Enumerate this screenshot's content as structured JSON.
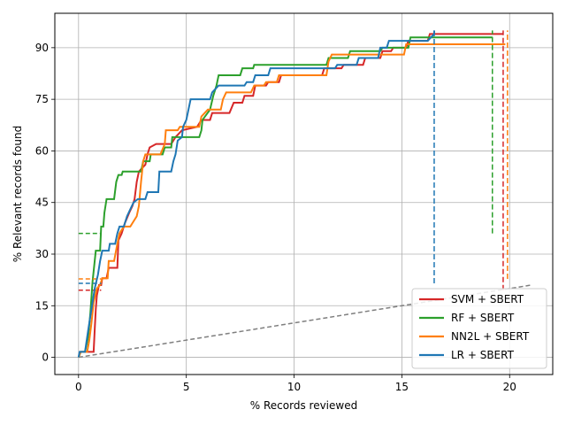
{
  "chart_data": {
    "type": "line",
    "title": "",
    "xlabel": "% Records reviewed",
    "ylabel": "% Relevant records found",
    "xlim": [
      -1.1,
      22.0
    ],
    "ylim": [
      -5,
      100
    ],
    "xticks": [
      0,
      5,
      10,
      15,
      20
    ],
    "yticks": [
      0,
      15,
      30,
      45,
      60,
      75,
      90
    ],
    "grid": true,
    "legend_position": "bottom-right",
    "series": [
      {
        "name": "SVM + SBERT",
        "color": "#d62728",
        "points": [
          [
            0,
            0
          ],
          [
            0.1,
            1.6
          ],
          [
            0.7,
            1.6
          ],
          [
            0.75,
            8
          ],
          [
            0.8,
            14
          ],
          [
            0.85,
            18
          ],
          [
            0.95,
            21
          ],
          [
            1.05,
            21
          ],
          [
            1.1,
            23
          ],
          [
            1.3,
            23
          ],
          [
            1.4,
            26
          ],
          [
            1.8,
            26
          ],
          [
            1.85,
            34
          ],
          [
            2.0,
            36
          ],
          [
            2.15,
            39
          ],
          [
            2.35,
            42
          ],
          [
            2.5,
            44
          ],
          [
            2.6,
            46
          ],
          [
            2.7,
            51
          ],
          [
            2.8,
            54
          ],
          [
            3.1,
            56
          ],
          [
            3.2,
            59
          ],
          [
            3.3,
            61
          ],
          [
            3.6,
            62
          ],
          [
            4.3,
            62
          ],
          [
            4.5,
            64
          ],
          [
            4.8,
            66
          ],
          [
            5.5,
            67
          ],
          [
            5.7,
            69
          ],
          [
            6.1,
            69
          ],
          [
            6.2,
            71
          ],
          [
            7.0,
            71
          ],
          [
            7.2,
            74
          ],
          [
            7.6,
            74
          ],
          [
            7.7,
            76
          ],
          [
            8.1,
            76
          ],
          [
            8.2,
            79
          ],
          [
            8.7,
            79
          ],
          [
            8.8,
            80
          ],
          [
            9.3,
            80
          ],
          [
            9.4,
            82
          ],
          [
            11.3,
            82
          ],
          [
            11.4,
            84
          ],
          [
            12.2,
            84
          ],
          [
            12.3,
            85
          ],
          [
            13.2,
            85
          ],
          [
            13.3,
            87
          ],
          [
            14.0,
            87
          ],
          [
            14.1,
            89
          ],
          [
            14.5,
            89
          ],
          [
            14.6,
            90
          ],
          [
            15.2,
            90
          ],
          [
            15.3,
            92
          ],
          [
            16.2,
            92
          ],
          [
            16.3,
            94
          ],
          [
            19.7,
            94
          ]
        ],
        "stop": {
          "x": 19.7,
          "y_start": 19.5,
          "y_end": 95
        }
      },
      {
        "name": "RF + SBERT",
        "color": "#2ca02c",
        "points": [
          [
            0,
            0
          ],
          [
            0.1,
            1.6
          ],
          [
            0.3,
            1.6
          ],
          [
            0.45,
            6
          ],
          [
            0.55,
            13
          ],
          [
            0.65,
            22
          ],
          [
            0.75,
            28
          ],
          [
            0.8,
            31
          ],
          [
            1.0,
            31
          ],
          [
            1.05,
            38
          ],
          [
            1.15,
            38
          ],
          [
            1.2,
            42
          ],
          [
            1.3,
            46
          ],
          [
            1.65,
            46
          ],
          [
            1.75,
            51
          ],
          [
            1.85,
            53
          ],
          [
            2.0,
            53
          ],
          [
            2.05,
            54
          ],
          [
            2.9,
            54
          ],
          [
            3.0,
            57
          ],
          [
            3.3,
            57
          ],
          [
            3.35,
            59
          ],
          [
            3.9,
            59
          ],
          [
            4.0,
            61
          ],
          [
            4.3,
            61
          ],
          [
            4.35,
            64
          ],
          [
            5.6,
            64
          ],
          [
            5.7,
            66
          ],
          [
            5.75,
            69
          ],
          [
            6.1,
            72
          ],
          [
            6.25,
            76
          ],
          [
            6.4,
            79
          ],
          [
            6.5,
            82
          ],
          [
            7.5,
            82
          ],
          [
            7.6,
            84
          ],
          [
            8.1,
            84
          ],
          [
            8.15,
            85
          ],
          [
            11.5,
            85
          ],
          [
            11.6,
            87
          ],
          [
            12.5,
            87
          ],
          [
            12.6,
            89
          ],
          [
            14.0,
            89
          ],
          [
            14.1,
            90
          ],
          [
            15.3,
            90
          ],
          [
            15.4,
            93
          ],
          [
            19.2,
            93
          ]
        ],
        "stop": {
          "x": 19.2,
          "y_start": 36,
          "y_end": 95
        }
      },
      {
        "name": "NN2L + SBERT",
        "color": "#ff7f0e",
        "points": [
          [
            0,
            0
          ],
          [
            0.1,
            1.6
          ],
          [
            0.4,
            1.6
          ],
          [
            0.5,
            5
          ],
          [
            0.6,
            10
          ],
          [
            0.7,
            16
          ],
          [
            0.85,
            20
          ],
          [
            1.0,
            21
          ],
          [
            1.1,
            23
          ],
          [
            1.35,
            23
          ],
          [
            1.4,
            28
          ],
          [
            1.65,
            28
          ],
          [
            1.8,
            33
          ],
          [
            1.9,
            36
          ],
          [
            2.1,
            38
          ],
          [
            2.4,
            38
          ],
          [
            2.5,
            39
          ],
          [
            2.7,
            41
          ],
          [
            2.8,
            44
          ],
          [
            2.9,
            51
          ],
          [
            3.0,
            57
          ],
          [
            3.1,
            59
          ],
          [
            3.8,
            59
          ],
          [
            4.0,
            62
          ],
          [
            4.05,
            66
          ],
          [
            4.6,
            66
          ],
          [
            4.7,
            67
          ],
          [
            5.6,
            67
          ],
          [
            5.7,
            70
          ],
          [
            6.0,
            72
          ],
          [
            6.6,
            72
          ],
          [
            6.7,
            75
          ],
          [
            6.85,
            77
          ],
          [
            8.0,
            77
          ],
          [
            8.15,
            79
          ],
          [
            8.6,
            79
          ],
          [
            8.7,
            80
          ],
          [
            9.2,
            80
          ],
          [
            9.3,
            82
          ],
          [
            11.5,
            82
          ],
          [
            11.6,
            86
          ],
          [
            11.75,
            88
          ],
          [
            15.1,
            88
          ],
          [
            15.2,
            91
          ],
          [
            19.8,
            91
          ]
        ],
        "stop": {
          "x": 19.9,
          "y_start": 22.8,
          "y_end": 95
        }
      },
      {
        "name": "LR + SBERT",
        "color": "#1f77b4",
        "points": [
          [
            0,
            0
          ],
          [
            0.05,
            1.6
          ],
          [
            0.3,
            1.6
          ],
          [
            0.45,
            8
          ],
          [
            0.6,
            14
          ],
          [
            0.75,
            20
          ],
          [
            0.9,
            24
          ],
          [
            1.0,
            28
          ],
          [
            1.1,
            31
          ],
          [
            1.4,
            31
          ],
          [
            1.45,
            33
          ],
          [
            1.7,
            33
          ],
          [
            1.8,
            36
          ],
          [
            1.9,
            38
          ],
          [
            2.1,
            38
          ],
          [
            2.25,
            41
          ],
          [
            2.4,
            43
          ],
          [
            2.55,
            45
          ],
          [
            2.75,
            46
          ],
          [
            3.1,
            46
          ],
          [
            3.2,
            48
          ],
          [
            3.7,
            48
          ],
          [
            3.75,
            54
          ],
          [
            4.3,
            54
          ],
          [
            4.4,
            57
          ],
          [
            4.5,
            59
          ],
          [
            4.6,
            63
          ],
          [
            4.8,
            64
          ],
          [
            4.85,
            67
          ],
          [
            5.0,
            69
          ],
          [
            5.1,
            72
          ],
          [
            5.2,
            75
          ],
          [
            6.1,
            75
          ],
          [
            6.2,
            77
          ],
          [
            6.5,
            79
          ],
          [
            7.7,
            79
          ],
          [
            7.8,
            80
          ],
          [
            8.1,
            80
          ],
          [
            8.2,
            82
          ],
          [
            8.8,
            82
          ],
          [
            8.9,
            84
          ],
          [
            11.9,
            84
          ],
          [
            12.0,
            85
          ],
          [
            12.9,
            85
          ],
          [
            13.0,
            87
          ],
          [
            13.9,
            87
          ],
          [
            14.0,
            90
          ],
          [
            14.3,
            90
          ],
          [
            14.4,
            92
          ],
          [
            16.2,
            92
          ],
          [
            16.5,
            94
          ],
          [
            16.5,
            95
          ]
        ],
        "stop": {
          "x": 16.5,
          "y_start": 21.5,
          "y_end": 95
        }
      }
    ],
    "random_baseline": {
      "color": "#7f7f7f",
      "points": [
        [
          0,
          0
        ],
        [
          21,
          21
        ]
      ]
    }
  }
}
